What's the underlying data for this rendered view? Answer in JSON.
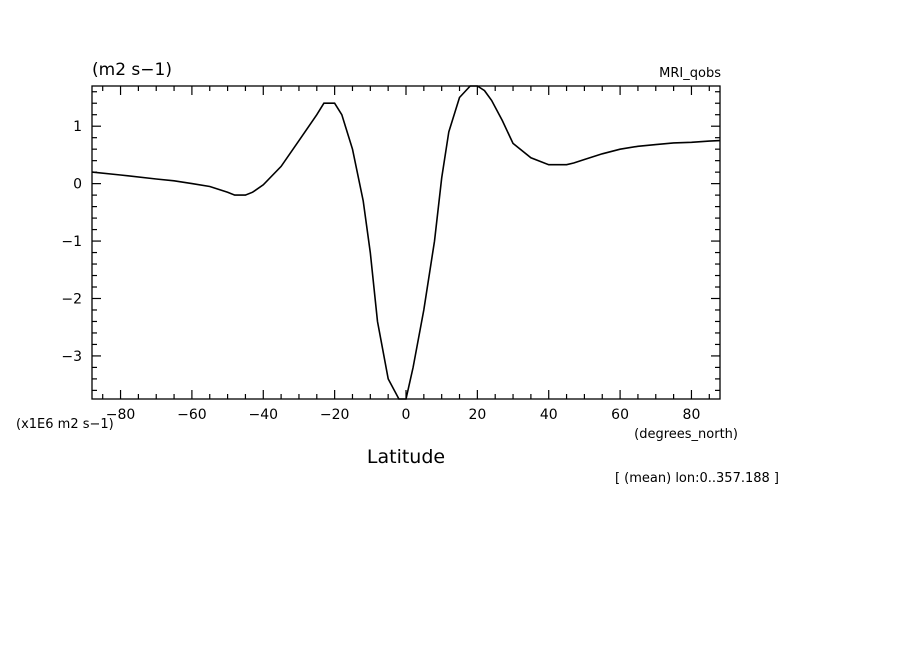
{
  "chart_data": {
    "type": "line",
    "title": "",
    "units_top": "(m2 s−1)",
    "dataset_label": "MRI_qobs",
    "y_multiplier": "(x1E6 m2 s−1)",
    "xlabel": "Latitude",
    "x_units": "(degrees_north)",
    "footnote": "[ (mean) lon:0..357.188 ]",
    "xlim": [
      -88,
      88
    ],
    "ylim": [
      -3.75,
      1.7
    ],
    "x_ticks": [
      -80,
      -60,
      -40,
      -20,
      0,
      20,
      40,
      60,
      80
    ],
    "x_tick_labels": [
      "−80",
      "−60",
      "−40",
      "−20",
      "0",
      "20",
      "40",
      "60",
      "80"
    ],
    "y_ticks": [
      -3,
      -2,
      -1,
      0,
      1
    ],
    "y_tick_labels": [
      "−3",
      "−2",
      "−1",
      "0",
      "1"
    ],
    "grid": false,
    "series": [
      {
        "x": [
          -88,
          -80,
          -70,
          -65,
          -60,
          -55,
          -50,
          -48,
          -45,
          -43,
          -40,
          -35,
          -30,
          -25,
          -23,
          -20,
          -18,
          -15,
          -12,
          -10,
          -8,
          -5,
          -2,
          0,
          2,
          5,
          8,
          10,
          12,
          15,
          18,
          20,
          22,
          24,
          27,
          30,
          35,
          40,
          43,
          45,
          47,
          50,
          55,
          60,
          65,
          70,
          75,
          80,
          85,
          88
        ],
        "y": [
          0.2,
          0.15,
          0.08,
          0.05,
          0.0,
          -0.05,
          -0.15,
          -0.2,
          -0.2,
          -0.15,
          -0.02,
          0.3,
          0.75,
          1.2,
          1.4,
          1.4,
          1.2,
          0.6,
          -0.3,
          -1.2,
          -2.4,
          -3.4,
          -3.75,
          -3.75,
          -3.2,
          -2.2,
          -1.0,
          0.1,
          0.9,
          1.5,
          1.7,
          1.7,
          1.62,
          1.45,
          1.1,
          0.7,
          0.45,
          0.33,
          0.33,
          0.33,
          0.36,
          0.42,
          0.52,
          0.6,
          0.65,
          0.68,
          0.71,
          0.72,
          0.74,
          0.75
        ]
      }
    ]
  }
}
